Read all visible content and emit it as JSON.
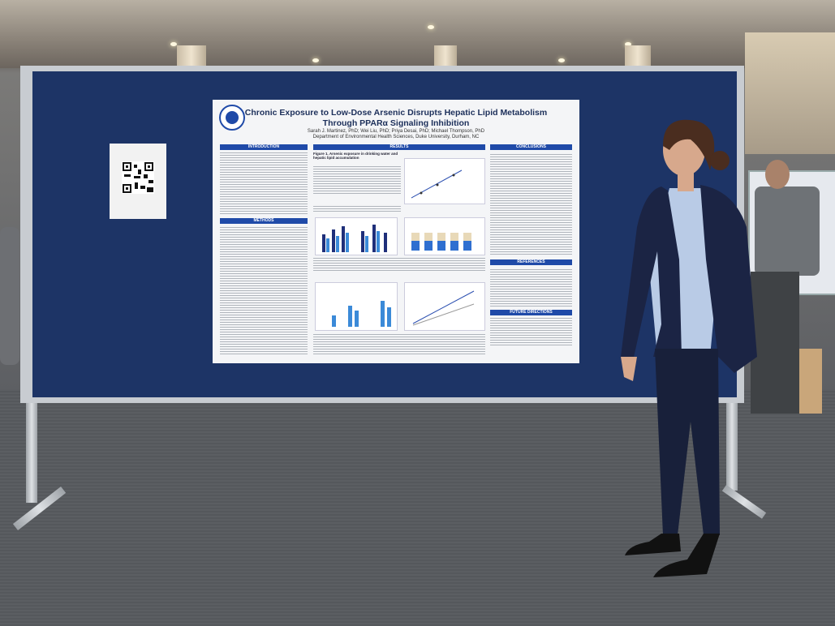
{
  "poster": {
    "title_line1": "Chronic Exposure to Low-Dose Arsenic Disrupts Hepatic Lipid Metabolism",
    "title_line2": "Through PPARα Signaling Inhibition",
    "authors": "Sarah J. Martinez, PhD; Wei Liu, PhD; Priya Desai, PhD; Michael Thompson, PhD",
    "affiliation": "Department of Environmental Health Sciences, Duke University, Durham, NC",
    "sections": {
      "introduction": "INTRODUCTION",
      "methods": "METHODS",
      "results": "RESULTS",
      "conclusions": "CONCLUSIONS",
      "references": "REFERENCES",
      "future_directions": "FUTURE DIRECTIONS"
    },
    "figure1_caption": "Figure 1. Arsenic exposure in drinking water and hepatic lipid accumulation"
  }
}
